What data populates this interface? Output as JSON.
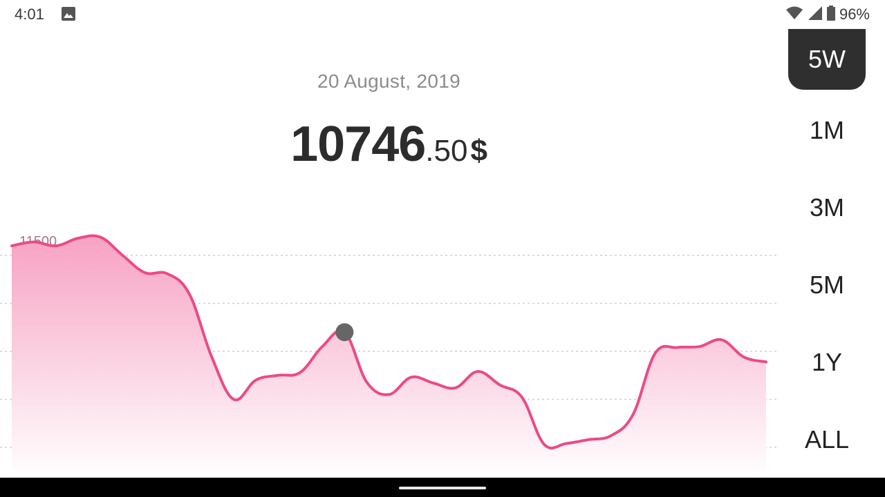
{
  "status_bar": {
    "time": "4:01",
    "battery": "96%",
    "icons": [
      "image-icon",
      "wifi-icon",
      "signal-icon",
      "battery-icon"
    ]
  },
  "header": {
    "date": "20 August, 2019",
    "price_int": "10746",
    "price_dec": ".50",
    "currency": "$"
  },
  "ranges": [
    {
      "label": "5W",
      "active": true
    },
    {
      "label": "1M",
      "active": false
    },
    {
      "label": "3M",
      "active": false
    },
    {
      "label": "5M",
      "active": false
    },
    {
      "label": "1Y",
      "active": false
    },
    {
      "label": "ALL",
      "active": false
    }
  ],
  "colors": {
    "line": "#ec4a86",
    "area_top": "#f9a8c6",
    "marker": "#666666",
    "active_range_bg": "#2f2f2f"
  },
  "chart_data": {
    "type": "area",
    "y_ticks": [
      "11500",
      "11000",
      "10500",
      "10000",
      "9500"
    ],
    "ylim": [
      9200,
      11800
    ],
    "x": [
      0,
      1,
      2,
      3,
      4,
      5,
      6,
      7,
      8,
      9,
      10,
      11,
      12,
      13,
      14,
      15,
      16,
      17,
      18,
      19,
      20,
      21,
      22,
      23,
      24,
      25,
      26,
      27,
      28,
      29,
      30,
      31,
      32,
      33,
      34
    ],
    "values": [
      11600,
      11640,
      11600,
      11680,
      11690,
      11500,
      11320,
      11310,
      11100,
      10450,
      10000,
      10200,
      10250,
      10280,
      10550,
      10700,
      10180,
      10050,
      10230,
      10170,
      10120,
      10290,
      10150,
      10020,
      9530,
      9540,
      9580,
      9620,
      9840,
      10480,
      10540,
      10550,
      10620,
      10440,
      10390
    ],
    "selected_index": 15,
    "grid": true
  }
}
